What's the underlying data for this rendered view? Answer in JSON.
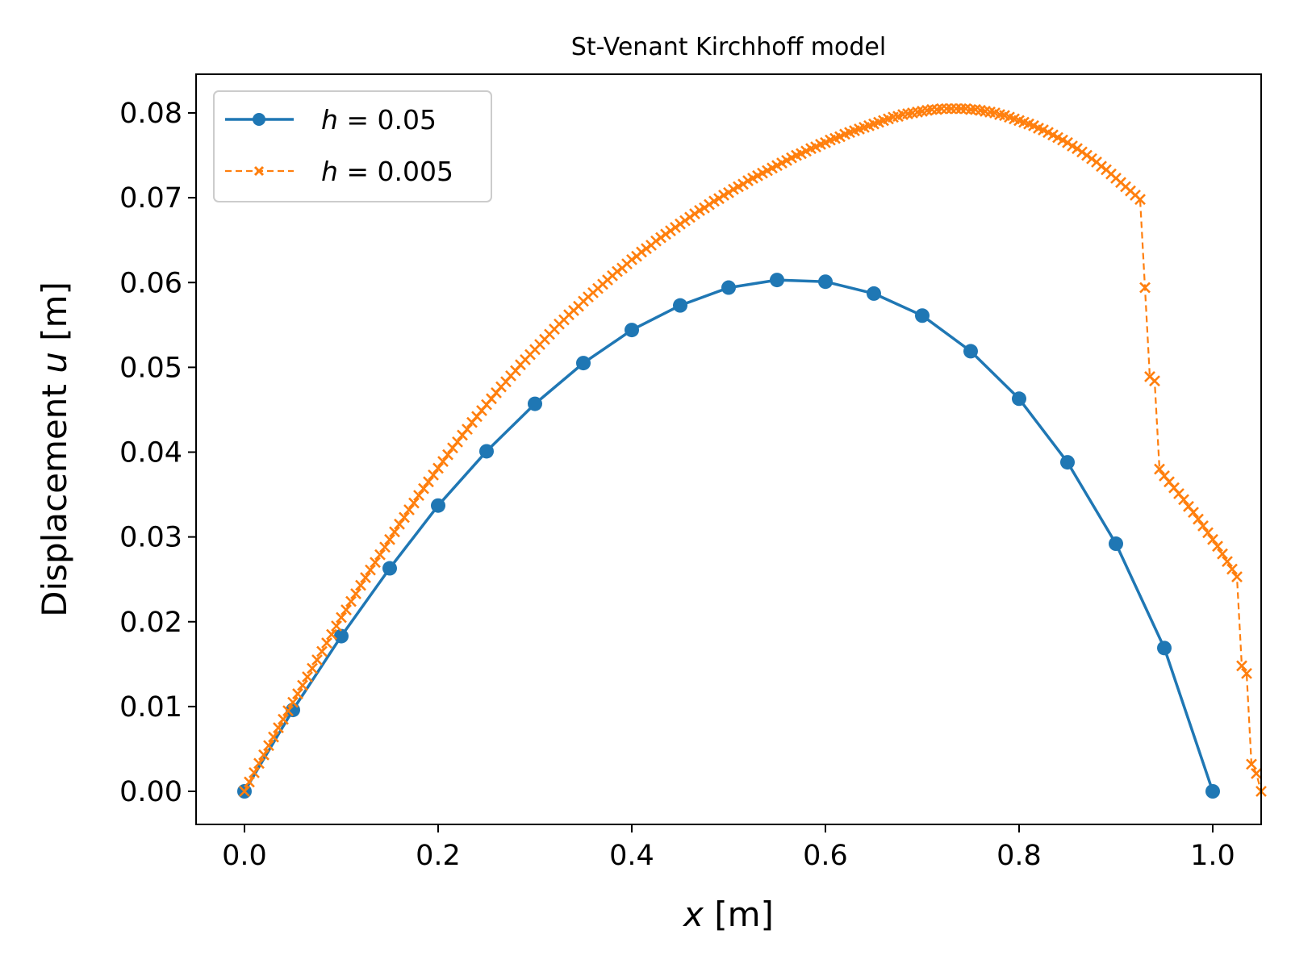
{
  "chart_data": {
    "type": "line",
    "title": "St-Venant Kirchhoff model",
    "xlabel": {
      "math": "x",
      "unit": " [m]"
    },
    "ylabel": {
      "prefix": "Displacement ",
      "math": "u",
      "unit": " [m]"
    },
    "xlim": [
      -0.05,
      1.05
    ],
    "ylim": [
      -0.004,
      0.0845
    ],
    "xticks": [
      0.0,
      0.2,
      0.4,
      0.6,
      0.8,
      1.0
    ],
    "xtick_labels": [
      "0.0",
      "0.2",
      "0.4",
      "0.6",
      "0.8",
      "1.0"
    ],
    "yticks": [
      0.0,
      0.01,
      0.02,
      0.03,
      0.04,
      0.05,
      0.06,
      0.07,
      0.08
    ],
    "ytick_labels": [
      "0.00",
      "0.01",
      "0.02",
      "0.03",
      "0.04",
      "0.05",
      "0.06",
      "0.07",
      "0.08"
    ],
    "grid": false,
    "legend_position": "top-left",
    "series": [
      {
        "name": "h = 0.05",
        "legend_math": "h",
        "legend_value": " = 0.05",
        "color": "#1f77b4",
        "line_style": "solid",
        "marker": "circle",
        "x": [
          0.0,
          0.05,
          0.1,
          0.15,
          0.2,
          0.25,
          0.3,
          0.35,
          0.4,
          0.45,
          0.5,
          0.55,
          0.6,
          0.65,
          0.7,
          0.75,
          0.8,
          0.85,
          0.9,
          0.95,
          1.0
        ],
        "y": [
          0.0,
          0.0096,
          0.0183,
          0.0263,
          0.0337,
          0.0401,
          0.0457,
          0.0505,
          0.0544,
          0.0573,
          0.0594,
          0.0603,
          0.0601,
          0.0587,
          0.0561,
          0.0519,
          0.0463,
          0.0388,
          0.0292,
          0.0169,
          0.0
        ]
      },
      {
        "name": "h = 0.005",
        "legend_math": "h",
        "legend_value": " = 0.005",
        "color": "#ff7f0e",
        "line_style": "dashed",
        "marker": "x",
        "x_start": 0.0,
        "x_step": 0.005,
        "y": [
          0.0,
          0.0011,
          0.0022,
          0.0033,
          0.0043,
          0.0054,
          0.0064,
          0.0075,
          0.0085,
          0.0095,
          0.0105,
          0.0115,
          0.0125,
          0.0135,
          0.0145,
          0.0155,
          0.0165,
          0.0175,
          0.0185,
          0.0195,
          0.0205,
          0.0214,
          0.0224,
          0.0233,
          0.0243,
          0.0252,
          0.0261,
          0.027,
          0.0279,
          0.0288,
          0.0297,
          0.0306,
          0.0315,
          0.0323,
          0.0332,
          0.034,
          0.0349,
          0.0357,
          0.0365,
          0.0373,
          0.0381,
          0.0389,
          0.0397,
          0.0405,
          0.0412,
          0.042,
          0.0427,
          0.0435,
          0.0442,
          0.0449,
          0.0456,
          0.0463,
          0.047,
          0.0477,
          0.0483,
          0.049,
          0.0496,
          0.0503,
          0.0509,
          0.0515,
          0.0521,
          0.0527,
          0.0533,
          0.0539,
          0.0545,
          0.0551,
          0.0556,
          0.0562,
          0.0567,
          0.0572,
          0.0578,
          0.0583,
          0.0588,
          0.0593,
          0.0598,
          0.0603,
          0.0608,
          0.0613,
          0.0617,
          0.0622,
          0.0627,
          0.0631,
          0.0636,
          0.064,
          0.0644,
          0.0649,
          0.0653,
          0.0657,
          0.0661,
          0.0665,
          0.0669,
          0.0673,
          0.0677,
          0.0681,
          0.0685,
          0.0688,
          0.0692,
          0.0696,
          0.0699,
          0.0703,
          0.0706,
          0.071,
          0.0713,
          0.0716,
          0.072,
          0.0723,
          0.0726,
          0.0729,
          0.0732,
          0.0735,
          0.0738,
          0.0741,
          0.0744,
          0.0747,
          0.075,
          0.0752,
          0.0755,
          0.0758,
          0.076,
          0.0763,
          0.0765,
          0.0768,
          0.077,
          0.0772,
          0.0775,
          0.0777,
          0.0779,
          0.0781,
          0.0783,
          0.0785,
          0.0787,
          0.0789,
          0.0791,
          0.0793,
          0.0795,
          0.0796,
          0.0798,
          0.0799,
          0.08,
          0.0801,
          0.0802,
          0.0803,
          0.0804,
          0.0804,
          0.0805,
          0.0805,
          0.0805,
          0.0805,
          0.0805,
          0.0805,
          0.0804,
          0.0804,
          0.0803,
          0.0802,
          0.0801,
          0.08,
          0.0798,
          0.0797,
          0.0795,
          0.0793,
          0.0791,
          0.0789,
          0.0787,
          0.0785,
          0.0782,
          0.078,
          0.0777,
          0.0774,
          0.0771,
          0.0768,
          0.0765,
          0.0761,
          0.0758,
          0.0754,
          0.075,
          0.0746,
          0.0742,
          0.0737,
          0.0733,
          0.0728,
          0.0723,
          0.0718,
          0.0713,
          0.0708,
          0.0703,
          0.0698,
          0.0594,
          0.0489,
          0.0484,
          0.038,
          0.0372,
          0.0365,
          0.0358,
          0.0351,
          0.0344,
          0.0336,
          0.0329,
          0.0321,
          0.0313,
          0.0305,
          0.0297,
          0.0289,
          0.028,
          0.0271,
          0.0262,
          0.0253,
          0.0148,
          0.0139,
          0.0032,
          0.0021,
          0.0
        ]
      }
    ]
  }
}
